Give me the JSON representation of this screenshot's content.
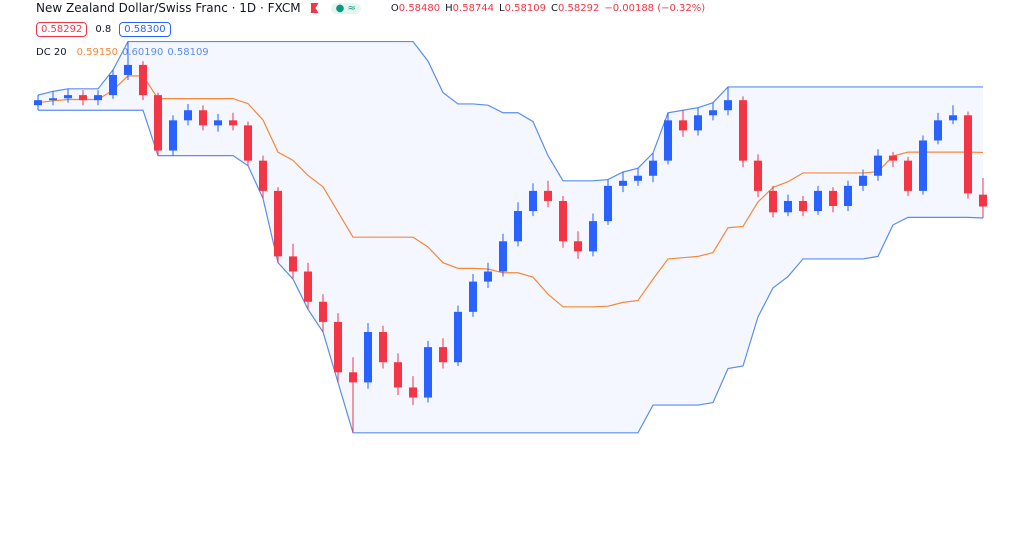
{
  "chart_data": {
    "type": "candlestick",
    "title": "New Zealand Dollar/Swiss Franc · 1D · FXCM",
    "ohlc": [
      {
        "key": "O",
        "value": "0.58480"
      },
      {
        "key": "H",
        "value": "0.58744"
      },
      {
        "key": "L",
        "value": "0.58109"
      },
      {
        "key": "C",
        "value": "0.58292"
      }
    ],
    "change": "−0.00188 (−0.32%)",
    "sell": "0.58292",
    "spread": "0.8",
    "buy": "0.58300",
    "indicator": {
      "name": "DC 20",
      "values": [
        "0.59150",
        "0.60190",
        "0.58109"
      ]
    },
    "up_color": "#2962ff",
    "down_color": "#f23645",
    "ylim": [
      0.5303,
      0.6157
    ],
    "open": [
      0.599,
      0.5998,
      0.6001,
      0.6006,
      0.5998,
      0.6006,
      0.6038,
      0.6054,
      0.6006,
      0.5918,
      0.5966,
      0.5982,
      0.5958,
      0.5966,
      0.5958,
      0.5902,
      0.5854,
      0.575,
      0.5726,
      0.5678,
      0.5646,
      0.5566,
      0.555,
      0.563,
      0.5582,
      0.5542,
      0.5526,
      0.5606,
      0.5582,
      0.5662,
      0.571,
      0.5726,
      0.5774,
      0.5822,
      0.5854,
      0.5838,
      0.5774,
      0.5758,
      0.5806,
      0.5862,
      0.587,
      0.5878,
      0.5902,
      0.5966,
      0.595,
      0.5974,
      0.5982,
      0.5998,
      0.5902,
      0.5854,
      0.582,
      0.5838,
      0.5822,
      0.5854,
      0.583,
      0.5862,
      0.5878,
      0.591,
      0.5902,
      0.5854,
      0.5934,
      0.5966,
      0.5974,
      0.5848
    ],
    "high": [
      0.6006,
      0.6012,
      0.6016,
      0.6014,
      0.6014,
      0.6046,
      0.6091,
      0.606,
      0.601,
      0.5974,
      0.5992,
      0.599,
      0.5976,
      0.5978,
      0.5964,
      0.591,
      0.586,
      0.577,
      0.574,
      0.569,
      0.566,
      0.559,
      0.5644,
      0.564,
      0.5596,
      0.556,
      0.5616,
      0.562,
      0.5672,
      0.5722,
      0.574,
      0.5786,
      0.5836,
      0.5866,
      0.587,
      0.5846,
      0.579,
      0.5818,
      0.5872,
      0.5884,
      0.589,
      0.5914,
      0.5978,
      0.5982,
      0.5986,
      0.5994,
      0.6019,
      0.6004,
      0.5912,
      0.5862,
      0.5848,
      0.5846,
      0.5862,
      0.586,
      0.587,
      0.5888,
      0.592,
      0.5916,
      0.5908,
      0.5942,
      0.5978,
      0.599,
      0.598,
      0.58744
    ],
    "low": [
      0.5982,
      0.599,
      0.5994,
      0.599,
      0.599,
      0.6,
      0.603,
      0.5998,
      0.591,
      0.591,
      0.5958,
      0.595,
      0.5948,
      0.595,
      0.5894,
      0.5842,
      0.574,
      0.5714,
      0.5666,
      0.563,
      0.555,
      0.547,
      0.554,
      0.5572,
      0.553,
      0.5514,
      0.5518,
      0.5572,
      0.5576,
      0.5654,
      0.57,
      0.5718,
      0.5766,
      0.5814,
      0.5828,
      0.5764,
      0.5746,
      0.575,
      0.58,
      0.5852,
      0.5862,
      0.5868,
      0.5896,
      0.594,
      0.5942,
      0.5966,
      0.5974,
      0.5892,
      0.5844,
      0.5812,
      0.5814,
      0.5814,
      0.5816,
      0.582,
      0.5822,
      0.5854,
      0.587,
      0.5892,
      0.5846,
      0.5848,
      0.5928,
      0.596,
      0.5842,
      0.58109
    ],
    "close": [
      0.5998,
      0.6001,
      0.6006,
      0.5998,
      0.6006,
      0.6038,
      0.6054,
      0.6006,
      0.5918,
      0.5966,
      0.5982,
      0.5958,
      0.5966,
      0.5958,
      0.5902,
      0.5854,
      0.575,
      0.5726,
      0.5678,
      0.5646,
      0.5566,
      0.555,
      0.563,
      0.5582,
      0.5542,
      0.5526,
      0.5606,
      0.5582,
      0.5662,
      0.571,
      0.5726,
      0.5774,
      0.5822,
      0.5854,
      0.5838,
      0.5774,
      0.5758,
      0.5806,
      0.5862,
      0.587,
      0.5878,
      0.5902,
      0.5966,
      0.595,
      0.5974,
      0.5982,
      0.5998,
      0.5902,
      0.5854,
      0.582,
      0.5838,
      0.5822,
      0.5854,
      0.583,
      0.5862,
      0.5878,
      0.591,
      0.5902,
      0.5854,
      0.5934,
      0.5966,
      0.5974,
      0.585,
      0.58292
    ],
    "channel": {
      "fill": "rgba(41,98,255,0.05)",
      "upper": {
        "color": "#5b8def",
        "values": [
          0.6006,
          0.6012,
          0.6016,
          0.6016,
          0.6016,
          0.6046,
          0.6091,
          0.6091,
          0.6091,
          0.6091,
          0.6091,
          0.6091,
          0.6091,
          0.6091,
          0.6091,
          0.6091,
          0.6091,
          0.6091,
          0.6091,
          0.6091,
          0.6091,
          0.6091,
          0.6091,
          0.6091,
          0.6091,
          0.6091,
          0.606,
          0.601,
          0.5992,
          0.5992,
          0.599,
          0.5978,
          0.5978,
          0.5964,
          0.591,
          0.587,
          0.587,
          0.587,
          0.5872,
          0.5884,
          0.589,
          0.5914,
          0.5978,
          0.5982,
          0.5986,
          0.5994,
          0.6019,
          0.6019,
          0.6019,
          0.6019,
          0.6019,
          0.6019,
          0.6019,
          0.6019,
          0.6019,
          0.6019,
          0.6019,
          0.6019,
          0.6019,
          0.6019,
          0.6019,
          0.6019,
          0.6019,
          0.6019
        ]
      },
      "middle": {
        "color": "#f7883a",
        "values": [
          0.5994,
          0.5997,
          0.5999,
          0.5999,
          0.5999,
          0.6014,
          0.60365,
          0.60365,
          0.60005,
          0.60005,
          0.60005,
          0.60005,
          0.60005,
          0.60005,
          0.59925,
          0.59665,
          0.59155,
          0.59025,
          0.58785,
          0.58605,
          0.58205,
          0.57805,
          0.57805,
          0.57805,
          0.57805,
          0.57805,
          0.5765,
          0.574,
          0.5731,
          0.5731,
          0.573,
          0.5724,
          0.5724,
          0.5717,
          0.569,
          0.567,
          0.567,
          0.567,
          0.5671,
          0.5677,
          0.568,
          0.5714,
          0.5746,
          0.5748,
          0.575,
          0.5756,
          0.57955,
          0.57975,
          0.58365,
          0.58595,
          0.58685,
          0.58825,
          0.58825,
          0.58825,
          0.58825,
          0.58825,
          0.58845,
          0.59095,
          0.59155,
          0.59155,
          0.59155,
          0.59155,
          0.59155,
          0.5915
        ]
      },
      "lower": {
        "color": "#5b8def",
        "values": [
          0.5982,
          0.5982,
          0.5982,
          0.5982,
          0.5982,
          0.5982,
          0.5982,
          0.5982,
          0.591,
          0.591,
          0.591,
          0.591,
          0.591,
          0.591,
          0.5894,
          0.5842,
          0.574,
          0.5714,
          0.5666,
          0.563,
          0.555,
          0.547,
          0.547,
          0.547,
          0.547,
          0.547,
          0.547,
          0.547,
          0.547,
          0.547,
          0.547,
          0.547,
          0.547,
          0.547,
          0.547,
          0.547,
          0.547,
          0.547,
          0.547,
          0.547,
          0.547,
          0.5514,
          0.5514,
          0.5514,
          0.5514,
          0.5518,
          0.5572,
          0.5576,
          0.5654,
          0.57,
          0.5718,
          0.5746,
          0.5746,
          0.5746,
          0.5746,
          0.5746,
          0.575,
          0.58,
          0.5812,
          0.5812,
          0.5812,
          0.5812,
          0.5812,
          0.58109
        ]
      }
    }
  }
}
